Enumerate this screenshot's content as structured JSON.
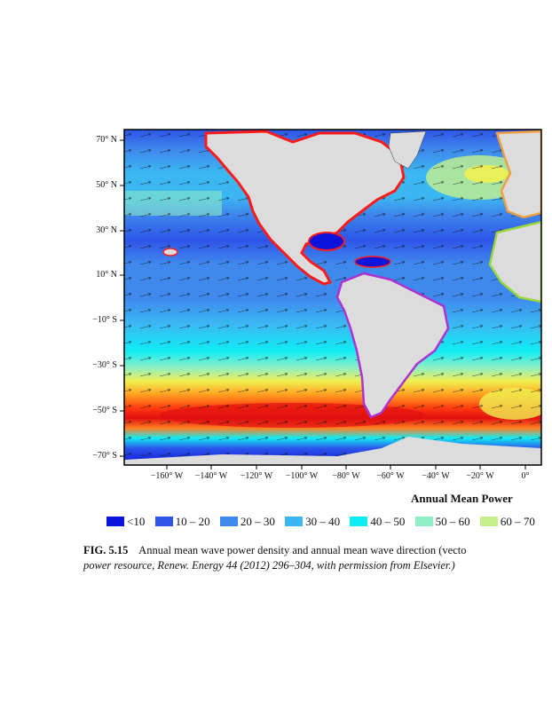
{
  "map": {
    "latitude_labels": [
      "70° N",
      "50° N",
      "30° N",
      "10° N",
      "−10° S",
      "−30° S",
      "−50° S",
      "−70° S"
    ],
    "longitude_labels": [
      "−160° W",
      "−140° W",
      "−120° W",
      "−100° W",
      "−80° W",
      "−60° W",
      "−40° W",
      "−20° W",
      "0°"
    ],
    "colorbar_title": "Annual Mean Power",
    "legend": [
      {
        "label": "<10",
        "color": "#0a14dc"
      },
      {
        "label": "10 – 20",
        "color": "#2d55e8"
      },
      {
        "label": "20 – 30",
        "color": "#3f88ec"
      },
      {
        "label": "30 – 40",
        "color": "#3bb8f2"
      },
      {
        "label": "40 – 50",
        "color": "#10ecf6"
      },
      {
        "label": "50 – 60",
        "color": "#8ff0c4"
      },
      {
        "label": "60 – 70",
        "color": "#c4f08c"
      }
    ],
    "colors": {
      "land": "#dcdcdc",
      "coast_north_america": "#ff1a1a",
      "coast_south_america": "#b030d0",
      "coast_europe": "#f0a040",
      "coast_africa": "#9ad83a"
    }
  },
  "caption": {
    "figure_label": "FIG. 5.15",
    "text": "Annual mean wave power density and annual mean wave direction (vecto",
    "line2": "power resource, Renew. Energy 44 (2012) 296–304, with permission from Elsevier.)"
  }
}
